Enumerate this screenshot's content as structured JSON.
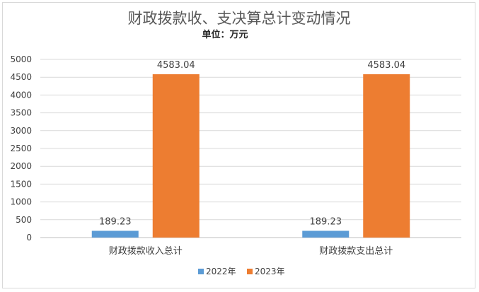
{
  "chart_data": {
    "type": "bar",
    "title": "财政拨款收、支决算总计变动情况",
    "subtitle": "单位：万元",
    "categories": [
      "财政拨款收入总计",
      "财政拨款支出总计"
    ],
    "series": [
      {
        "name": "2022年",
        "values": [
          189.23,
          189.23
        ],
        "labels": [
          "189.23",
          "189.23"
        ],
        "color": "#5b9bd5"
      },
      {
        "name": "2023年",
        "values": [
          4583.04,
          4583.04
        ],
        "labels": [
          "4583.04",
          "4583.04"
        ],
        "color": "#ed7d31"
      }
    ],
    "ylim": [
      0,
      5000
    ],
    "yticks": [
      "0",
      "500",
      "1000",
      "1500",
      "2000",
      "2500",
      "3000",
      "3500",
      "4000",
      "4500",
      "5000"
    ],
    "grid": true,
    "legend": "bottom"
  }
}
